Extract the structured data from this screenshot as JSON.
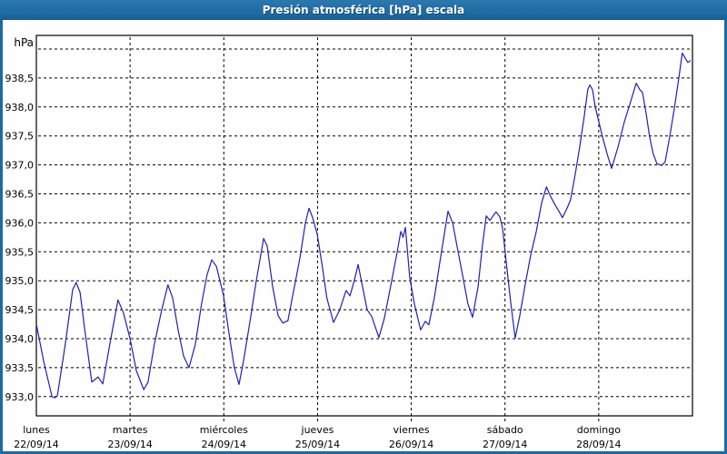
{
  "window": {
    "title": "Presión atmosférica [hPa] escala"
  },
  "colors": {
    "titlebar_blue": "#1d6aa1",
    "line_blue": "#2121b0",
    "grid_black": "#000000",
    "background_white": "#fdfefd",
    "text_black": "#000000"
  },
  "chart_data": {
    "type": "line",
    "title": "Presión atmosférica [hPa] escala",
    "ylabel": "hPa",
    "decimal_separator": ",",
    "grid": true,
    "legend": false,
    "ylim": [
      932.65,
      939.25
    ],
    "y_gridline_values": [
      939.0,
      938.5,
      938.0,
      937.5,
      937.0,
      936.5,
      936.0,
      935.5,
      935.0,
      934.5,
      934.0,
      933.5,
      933.0
    ],
    "y_tick_labels": [
      "",
      "938,5",
      "938,0",
      "937,5",
      "937,0",
      "936,5",
      "936,0",
      "935,5",
      "935,0",
      "934,5",
      "934,0",
      "933,5",
      "933,0"
    ],
    "x_axis": {
      "hours_total": 168,
      "days": [
        {
          "weekday": "lunes",
          "date": "22/09/14"
        },
        {
          "weekday": "martes",
          "date": "23/09/14"
        },
        {
          "weekday": "miércoles",
          "date": "24/09/14"
        },
        {
          "weekday": "jueves",
          "date": "25/09/14"
        },
        {
          "weekday": "viernes",
          "date": "26/09/14"
        },
        {
          "weekday": "sábado",
          "date": "27/09/14"
        },
        {
          "weekday": "domingo",
          "date": "28/09/14"
        }
      ]
    },
    "series": [
      {
        "name": "Presión atmosférica",
        "color": "#2121b0",
        "points_hours_hpa": [
          [
            0,
            934.25
          ],
          [
            1.9,
            933.6
          ],
          [
            4,
            933.0
          ],
          [
            4.8,
            932.98
          ],
          [
            5.4,
            933.02
          ],
          [
            7.4,
            933.9
          ],
          [
            9.3,
            934.85
          ],
          [
            10.2,
            934.97
          ],
          [
            11.2,
            934.8
          ],
          [
            12.3,
            934.2
          ],
          [
            14.2,
            933.25
          ],
          [
            15.8,
            933.34
          ],
          [
            17,
            933.22
          ],
          [
            18.8,
            933.9
          ],
          [
            20.9,
            934.67
          ],
          [
            22.3,
            934.45
          ],
          [
            24,
            934.0
          ],
          [
            25.6,
            933.45
          ],
          [
            27.5,
            933.12
          ],
          [
            28.6,
            933.25
          ],
          [
            30.2,
            933.9
          ],
          [
            32.1,
            934.5
          ],
          [
            33.7,
            934.93
          ],
          [
            34.9,
            934.7
          ],
          [
            36.3,
            934.15
          ],
          [
            37.7,
            933.7
          ],
          [
            39.1,
            933.5
          ],
          [
            40.7,
            933.9
          ],
          [
            42.3,
            934.6
          ],
          [
            43.7,
            935.1
          ],
          [
            44.9,
            935.36
          ],
          [
            46.1,
            935.25
          ],
          [
            47.2,
            934.95
          ],
          [
            47.9,
            934.75
          ],
          [
            49.3,
            934.1
          ],
          [
            50.7,
            933.5
          ],
          [
            51.9,
            933.21
          ],
          [
            53,
            933.6
          ],
          [
            54.7,
            934.3
          ],
          [
            56.3,
            935.0
          ],
          [
            58.2,
            935.73
          ],
          [
            59.1,
            935.6
          ],
          [
            60.5,
            934.9
          ],
          [
            61.9,
            934.4
          ],
          [
            63.1,
            934.27
          ],
          [
            64.4,
            934.31
          ],
          [
            65.8,
            934.8
          ],
          [
            67.5,
            935.4
          ],
          [
            68.9,
            936.0
          ],
          [
            69.8,
            936.25
          ],
          [
            70.7,
            936.1
          ],
          [
            71.9,
            935.81
          ],
          [
            73.1,
            935.3
          ],
          [
            74.4,
            934.7
          ],
          [
            76.1,
            934.28
          ],
          [
            77.7,
            934.5
          ],
          [
            79.3,
            934.83
          ],
          [
            80.3,
            934.74
          ],
          [
            81.4,
            935.0
          ],
          [
            82.4,
            935.28
          ],
          [
            83.5,
            934.9
          ],
          [
            84.7,
            934.5
          ],
          [
            85.9,
            934.38
          ],
          [
            86.8,
            934.2
          ],
          [
            87.7,
            934.02
          ],
          [
            89.1,
            934.35
          ],
          [
            90.7,
            934.9
          ],
          [
            92.4,
            935.5
          ],
          [
            93.3,
            935.85
          ],
          [
            93.9,
            935.75
          ],
          [
            94.5,
            935.92
          ],
          [
            95.6,
            935.05
          ],
          [
            96.8,
            934.6
          ],
          [
            98.4,
            934.15
          ],
          [
            99.6,
            934.3
          ],
          [
            100.5,
            934.24
          ],
          [
            101.9,
            934.7
          ],
          [
            103.5,
            935.4
          ],
          [
            105.4,
            936.2
          ],
          [
            106.6,
            936.0
          ],
          [
            108,
            935.5
          ],
          [
            109.4,
            935.0
          ],
          [
            110.5,
            934.6
          ],
          [
            111.7,
            934.37
          ],
          [
            113.1,
            934.9
          ],
          [
            114.2,
            935.6
          ],
          [
            115.2,
            936.12
          ],
          [
            116.1,
            936.04
          ],
          [
            117.7,
            936.19
          ],
          [
            118.7,
            936.1
          ],
          [
            119.4,
            935.9
          ],
          [
            120.5,
            935.2
          ],
          [
            121.5,
            934.6
          ],
          [
            122.6,
            934.01
          ],
          [
            123.8,
            934.4
          ],
          [
            125.2,
            934.95
          ],
          [
            126.6,
            935.45
          ],
          [
            128,
            935.85
          ],
          [
            129.4,
            936.35
          ],
          [
            130.6,
            936.62
          ],
          [
            131.7,
            936.45
          ],
          [
            132.9,
            936.3
          ],
          [
            133.8,
            936.2
          ],
          [
            134.7,
            936.09
          ],
          [
            135.9,
            936.25
          ],
          [
            136.8,
            936.4
          ],
          [
            138,
            936.85
          ],
          [
            139.1,
            937.3
          ],
          [
            140.3,
            937.85
          ],
          [
            141.2,
            938.3
          ],
          [
            141.7,
            938.38
          ],
          [
            142.4,
            938.3
          ],
          [
            143.1,
            938.0
          ],
          [
            144,
            937.75
          ],
          [
            144.9,
            937.5
          ],
          [
            146.1,
            937.2
          ],
          [
            147.3,
            936.94
          ],
          [
            148.9,
            937.3
          ],
          [
            150.5,
            937.73
          ],
          [
            152.2,
            938.1
          ],
          [
            153.6,
            938.41
          ],
          [
            154.5,
            938.3
          ],
          [
            155.2,
            938.25
          ],
          [
            156.1,
            937.9
          ],
          [
            157,
            937.5
          ],
          [
            157.9,
            937.2
          ],
          [
            158.9,
            937.02
          ],
          [
            160.1,
            936.99
          ],
          [
            161,
            937.05
          ],
          [
            162.2,
            937.5
          ],
          [
            163.3,
            937.95
          ],
          [
            164.5,
            938.5
          ],
          [
            165.4,
            938.93
          ],
          [
            166.1,
            938.85
          ],
          [
            166.8,
            938.77
          ],
          [
            167.5,
            938.8
          ]
        ]
      }
    ]
  }
}
